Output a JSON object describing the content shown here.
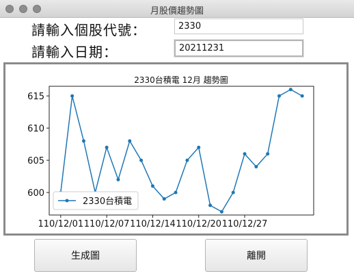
{
  "window": {
    "title": "月股價趨勢圖"
  },
  "form": {
    "stock_label": "請輸入個股代號：",
    "stock_value": "2330",
    "date_label": "請輸入日期：",
    "date_value": "20211231"
  },
  "buttons": {
    "generate_label": "生成圖",
    "exit_label": "離開"
  },
  "colors": {
    "series": "#1f77b4"
  },
  "chart_data": {
    "type": "line",
    "title": "2330台積電 12月 趨勢圖",
    "xlabel": "",
    "ylabel": "",
    "ylim": [
      596.5,
      616.5
    ],
    "yticks": [
      600,
      605,
      610,
      615
    ],
    "xticks": [
      {
        "pos": 1,
        "label": "110/12/01"
      },
      {
        "pos": 5,
        "label": "110/12/07"
      },
      {
        "pos": 9,
        "label": "110/12/14"
      },
      {
        "pos": 13,
        "label": "110/12/20"
      },
      {
        "pos": 17,
        "label": "110/12/27"
      }
    ],
    "x": [
      1,
      2,
      3,
      4,
      5,
      6,
      7,
      8,
      9,
      10,
      11,
      12,
      13,
      14,
      15,
      16,
      17,
      18,
      19,
      20,
      21,
      22
    ],
    "series": [
      {
        "name": "2330台積電",
        "values": [
          600,
          615,
          608,
          600,
          607,
          602,
          608,
          605,
          601,
          599,
          600,
          605,
          607,
          598,
          597,
          600,
          606,
          604,
          606,
          615,
          616,
          615
        ]
      }
    ],
    "legend": "bottom-left",
    "grid": false
  }
}
